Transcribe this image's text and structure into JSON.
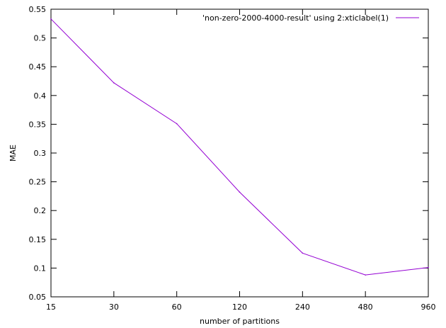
{
  "chart_data": {
    "type": "line",
    "title": "",
    "xlabel": "number of partitions",
    "ylabel": "MAE",
    "categories": [
      "15",
      "30",
      "60",
      "120",
      "240",
      "480",
      "960"
    ],
    "y_ticks": [
      "0.05",
      "0.1",
      "0.15",
      "0.2",
      "0.25",
      "0.3",
      "0.35",
      "0.4",
      "0.45",
      "0.5",
      "0.55"
    ],
    "ylim": [
      0.05,
      0.55
    ],
    "grid": false,
    "legend_position": "top-right",
    "series": [
      {
        "name": "'non-zero-2000-4000-result' using 2:xticlabel(1)",
        "color": "#9400d3",
        "values": [
          0.533,
          0.422,
          0.351,
          0.232,
          0.126,
          0.088,
          0.101
        ]
      }
    ]
  }
}
